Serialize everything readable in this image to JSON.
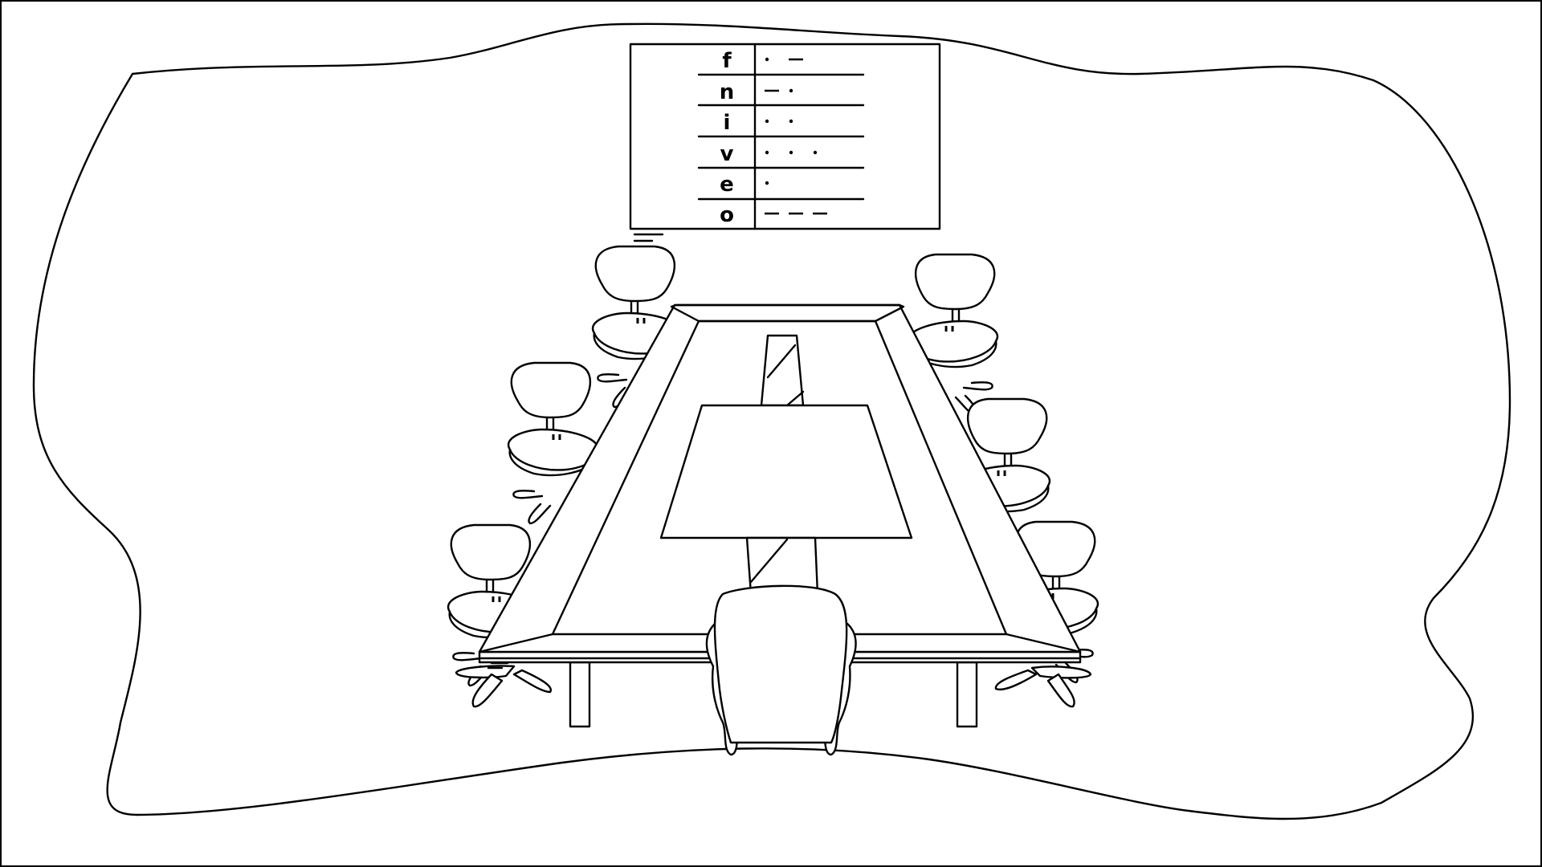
{
  "code_chart": {
    "rows": [
      {
        "letter": "f",
        "code": ".-"
      },
      {
        "letter": "n",
        "code": "-."
      },
      {
        "letter": "i",
        "code": ".."
      },
      {
        "letter": "v",
        "code": "..."
      },
      {
        "letter": "e",
        "code": "."
      },
      {
        "letter": "o",
        "code": "---"
      }
    ]
  },
  "colors": {
    "line": "#000000",
    "background": "#ffffff"
  }
}
